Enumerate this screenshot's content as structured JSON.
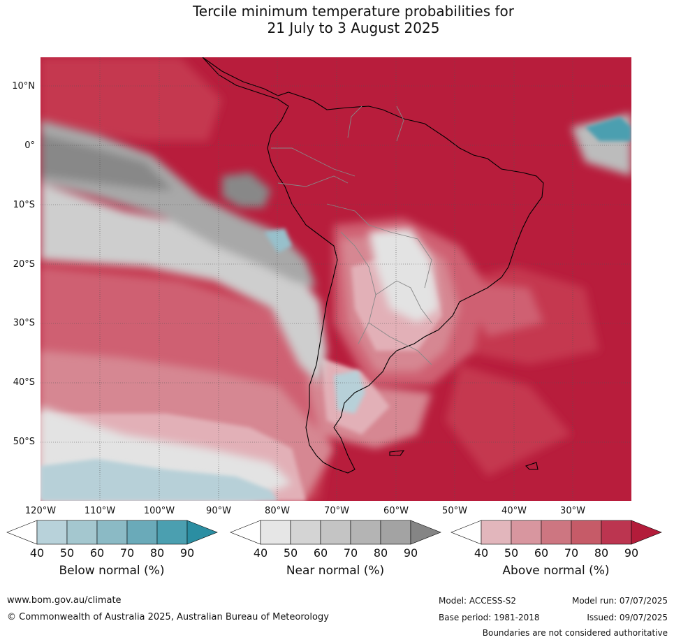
{
  "title": {
    "line1": "Tercile minimum temperature probabilities for",
    "line2": "21 July to 3 August 2025"
  },
  "map": {
    "latitude_labels": [
      "10°N",
      "0°",
      "10°S",
      "20°S",
      "30°S",
      "40°S",
      "50°S"
    ],
    "longitude_labels": [
      "120°W",
      "110°W",
      "100°W",
      "90°W",
      "80°W",
      "70°W",
      "60°W",
      "50°W",
      "40°W",
      "30°W"
    ],
    "colors": {
      "above_90": "#b81d3c",
      "above_80": "#c5384f",
      "above_70": "#cf6172",
      "above_60": "#d68792",
      "above_50": "#e2b0b7",
      "near_90": "#888888",
      "near_80": "#a8a8a8",
      "near_70": "#bcbcbc",
      "near_60": "#cecece",
      "near_50": "#e3e3e3",
      "below_50": "#b7d0d8",
      "below_60": "#97c0cb",
      "below_80": "#4b9fb0",
      "land_outline": "#000000",
      "borders": "#888888",
      "graticule": "#555555"
    }
  },
  "legends": [
    {
      "title": "Below normal (%)",
      "ticks": [
        "40",
        "50",
        "60",
        "70",
        "80",
        "90"
      ],
      "colors": [
        "#ffffff",
        "#b8d2da",
        "#a4c7cf",
        "#8bbac5",
        "#6aaab9",
        "#4b9fb0",
        "#2b8ea2"
      ]
    },
    {
      "title": "Near normal (%)",
      "ticks": [
        "40",
        "50",
        "60",
        "70",
        "80",
        "90"
      ],
      "colors": [
        "#ffffff",
        "#e6e6e6",
        "#d4d4d4",
        "#c4c4c4",
        "#b4b4b4",
        "#a3a3a3",
        "#858585"
      ]
    },
    {
      "title": "Above normal (%)",
      "ticks": [
        "40",
        "50",
        "60",
        "70",
        "80",
        "90"
      ],
      "colors": [
        "#ffffff",
        "#e2b6bc",
        "#d8969f",
        "#cd7681",
        "#c65b68",
        "#bc3550",
        "#b31c3a"
      ]
    }
  ],
  "footer": {
    "website": "www.bom.gov.au/climate",
    "copyright": "© Commonwealth of Australia 2025, Australian Bureau of Meteorology",
    "model": "Model: ACCESS-S2",
    "base_period": "Base period: 1981-2018",
    "model_run": "Model run: 07/07/2025",
    "issued": "Issued: 09/07/2025",
    "disclaimer": "Boundaries are not considered authoritative"
  }
}
